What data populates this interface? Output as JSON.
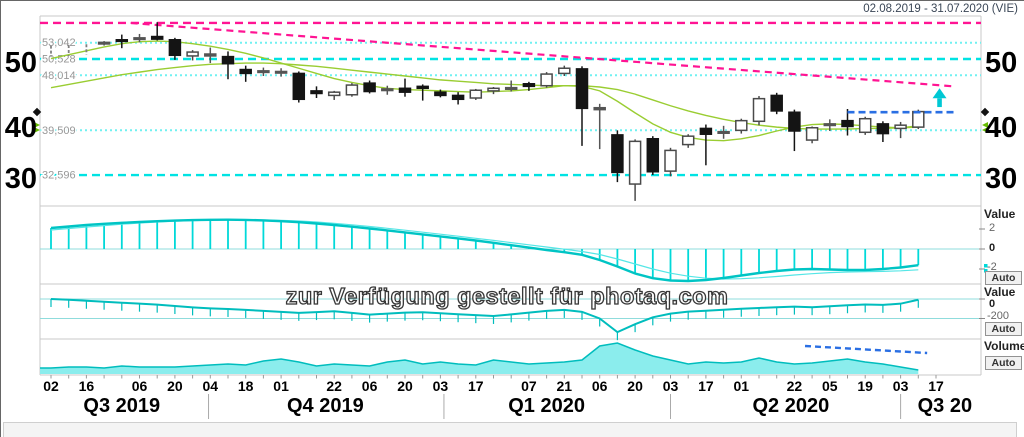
{
  "header": {
    "date_range": "02.08.2019 - 31.07.2020 (VIE)"
  },
  "watermark": {
    "text": "zur Verfügung gestellt für photaq.com"
  },
  "colors": {
    "cyan_line": "#00C4C4",
    "cyan_thin": "#55E6E6",
    "cyan_bar": "#00D9D9",
    "cyan_fill": "#8BEDED",
    "cyan_area_top": "#00BDBD",
    "level_dashed": "#00E3E3",
    "level_dotted": "#70F1F1",
    "zero_line": "#8FDCDC",
    "pink": "#FF1493",
    "green_ma": "#9ACD32",
    "blue": "#2A6FE3",
    "candle_black": "#141414",
    "candle_hollow": "#4a4a4a",
    "candle_gray": "#555555",
    "candle_dashed": "#808080",
    "arrow": "#00C8D4",
    "grid": "#c9c9c9",
    "marker_green": "#66BB00",
    "tick_gray": "#9a9a9a"
  },
  "price_axis": {
    "major_ticks": [
      "50",
      "40",
      "30"
    ],
    "level_lines": [
      {
        "label": "53,042",
        "value": 53.042,
        "style": "dotted"
      },
      {
        "label": "50,528",
        "value": 50.528,
        "style": "dashed"
      },
      {
        "label": "48,014",
        "value": 48.014,
        "style": "dotted"
      },
      {
        "label": "39,509",
        "value": 39.509,
        "style": "dotted"
      },
      {
        "label": "32,596",
        "value": 32.596,
        "style": "dashed"
      }
    ]
  },
  "x_axis": {
    "tick_labels": [
      {
        "label": "02",
        "week": 0
      },
      {
        "label": "16",
        "week": 2
      },
      {
        "label": "06",
        "week": 5
      },
      {
        "label": "20",
        "week": 7
      },
      {
        "label": "04",
        "week": 9
      },
      {
        "label": "18",
        "week": 11
      },
      {
        "label": "01",
        "week": 13
      },
      {
        "label": "22",
        "week": 16
      },
      {
        "label": "06",
        "week": 18
      },
      {
        "label": "20",
        "week": 20
      },
      {
        "label": "03",
        "week": 22
      },
      {
        "label": "17",
        "week": 24
      },
      {
        "label": "07",
        "week": 27
      },
      {
        "label": "21",
        "week": 29
      },
      {
        "label": "06",
        "week": 31
      },
      {
        "label": "20",
        "week": 33
      },
      {
        "label": "03",
        "week": 35
      },
      {
        "label": "17",
        "week": 37
      },
      {
        "label": "01",
        "week": 39
      },
      {
        "label": "22",
        "week": 42
      },
      {
        "label": "05",
        "week": 44
      },
      {
        "label": "19",
        "week": 46
      },
      {
        "label": "03",
        "week": 48
      },
      {
        "label": "17",
        "week": 50
      }
    ],
    "quarters": [
      {
        "label": "Q3 2019",
        "week": 4
      },
      {
        "label": "Q4 2019",
        "week": 15.5
      },
      {
        "label": "Q1 2020",
        "week": 28
      },
      {
        "label": "Q2 2020",
        "week": 41.8
      },
      {
        "label": "Q3 20",
        "week": 50.5
      }
    ],
    "quarter_separators_weeks": [
      8.9,
      22.2,
      35,
      48
    ]
  },
  "panels_right": {
    "macd": {
      "title": "Value",
      "ticks": [
        "2",
        "0",
        "-2"
      ],
      "button": "Auto"
    },
    "osc": {
      "title": "Value",
      "ticks": [
        "0",
        "-200"
      ],
      "button": "Auto"
    },
    "volume": {
      "title": "Volume",
      "button": "Auto"
    }
  },
  "chart_data": [
    {
      "type": "candlestick",
      "panel": "price",
      "x_unit": "weekly",
      "ylim": [
        27,
        57
      ],
      "candles": [
        [
          51.8,
          52.6,
          50.9,
          51.8,
          "dashed"
        ],
        [
          52.0,
          52.7,
          51.0,
          52.0,
          "dashed"
        ],
        [
          52.1,
          52.8,
          51.2,
          52.1,
          "dashed"
        ],
        [
          53.0,
          53.3,
          52.6,
          53.1,
          "gray"
        ],
        [
          53.3,
          54.3,
          52.2,
          53.5,
          "black"
        ],
        [
          53.7,
          54.4,
          53.1,
          53.8,
          "gray"
        ],
        [
          54.0,
          56.2,
          53.4,
          53.6,
          "black"
        ],
        [
          53.5,
          53.8,
          50.4,
          51.1,
          "black"
        ],
        [
          51.0,
          51.9,
          50.3,
          51.6,
          "hollow"
        ],
        [
          51.3,
          52.3,
          49.9,
          51.0,
          "gray"
        ],
        [
          50.9,
          51.7,
          47.4,
          49.8,
          "black"
        ],
        [
          48.9,
          49.5,
          47.0,
          48.3,
          "black"
        ],
        [
          48.5,
          49.2,
          47.9,
          48.7,
          "gray"
        ],
        [
          48.6,
          49.1,
          47.8,
          48.4,
          "gray"
        ],
        [
          48.3,
          48.6,
          43.8,
          44.3,
          "black"
        ],
        [
          45.6,
          46.3,
          44.5,
          45.2,
          "black"
        ],
        [
          44.9,
          45.6,
          44.2,
          45.4,
          "hollow"
        ],
        [
          45.0,
          46.8,
          44.7,
          46.5,
          "hollow"
        ],
        [
          46.8,
          47.2,
          45.2,
          45.5,
          "black"
        ],
        [
          45.7,
          46.4,
          45.0,
          45.9,
          "gray"
        ],
        [
          46.0,
          47.5,
          44.7,
          45.4,
          "black"
        ],
        [
          46.3,
          46.6,
          44.1,
          46.0,
          "black"
        ],
        [
          45.4,
          45.8,
          44.6,
          44.9,
          "black"
        ],
        [
          44.9,
          45.4,
          43.5,
          44.3,
          "black"
        ],
        [
          44.5,
          45.9,
          44.2,
          45.7,
          "hollow"
        ],
        [
          45.6,
          46.2,
          45.1,
          46.0,
          "hollow"
        ],
        [
          45.9,
          47.2,
          45.5,
          46.1,
          "gray"
        ],
        [
          46.3,
          47.0,
          45.6,
          46.7,
          "black"
        ],
        [
          46.4,
          48.5,
          46.1,
          48.2,
          "hollow"
        ],
        [
          48.3,
          49.5,
          47.9,
          49.1,
          "hollow"
        ],
        [
          49.0,
          49.4,
          37.1,
          42.9,
          "black"
        ],
        [
          43.0,
          43.6,
          36.6,
          42.7,
          "gray"
        ],
        [
          38.8,
          39.5,
          31.5,
          33.0,
          "black"
        ],
        [
          31.2,
          38.1,
          28.6,
          37.8,
          "hollow"
        ],
        [
          38.2,
          38.6,
          32.6,
          33.1,
          "black"
        ],
        [
          33.2,
          36.8,
          32.4,
          36.4,
          "hollow"
        ],
        [
          37.3,
          38.9,
          36.8,
          38.6,
          "hollow"
        ],
        [
          39.8,
          40.4,
          34.1,
          38.9,
          "black"
        ],
        [
          39.2,
          40.2,
          38.2,
          39.3,
          "gray"
        ],
        [
          39.5,
          41.3,
          39.0,
          41.0,
          "hollow"
        ],
        [
          40.9,
          44.8,
          40.3,
          44.4,
          "hollow"
        ],
        [
          44.9,
          45.3,
          42.0,
          42.5,
          "black"
        ],
        [
          42.3,
          42.7,
          36.3,
          39.4,
          "black"
        ],
        [
          38.0,
          40.1,
          37.5,
          39.9,
          "hollow"
        ],
        [
          40.3,
          41.2,
          39.4,
          40.5,
          "gray"
        ],
        [
          41.0,
          42.8,
          38.7,
          40.1,
          "black"
        ],
        [
          39.2,
          41.6,
          38.8,
          41.3,
          "hollow"
        ],
        [
          40.5,
          40.9,
          37.7,
          39.0,
          "black"
        ],
        [
          39.8,
          40.8,
          38.3,
          40.3,
          "hollow"
        ],
        [
          40.0,
          42.7,
          39.7,
          42.4,
          "hollow"
        ]
      ],
      "overlays": {
        "ma_fast": [
          50.6,
          51.2,
          51.8,
          52.4,
          52.9,
          53.2,
          53.3,
          53.2,
          52.9,
          52.5,
          52.0,
          51.4,
          50.7,
          49.9,
          49.1,
          48.3,
          47.5,
          46.9,
          46.4,
          46.0,
          45.8,
          45.7,
          45.6,
          45.5,
          45.4,
          45.5,
          45.6,
          45.8,
          46.1,
          46.4,
          46.3,
          45.6,
          44.0,
          42.2,
          40.5,
          39.2,
          38.4,
          38.0,
          37.9,
          38.2,
          38.7,
          39.4,
          40.0,
          40.4,
          40.5,
          40.4,
          40.2,
          40.0,
          39.9,
          40.2
        ],
        "ma_slow": [
          46.1,
          46.6,
          47.1,
          47.6,
          48.1,
          48.5,
          48.9,
          49.2,
          49.5,
          49.7,
          49.8,
          49.9,
          49.9,
          49.8,
          49.6,
          49.4,
          49.1,
          48.8,
          48.5,
          48.2,
          47.9,
          47.6,
          47.3,
          47.1,
          46.9,
          46.7,
          46.6,
          46.5,
          46.4,
          46.4,
          46.4,
          46.2,
          45.8,
          45.1,
          44.2,
          43.3,
          42.5,
          41.8,
          41.2,
          40.7,
          40.3,
          40.0,
          39.8,
          39.7,
          39.7,
          39.7,
          39.8,
          39.8,
          39.9,
          40.0
        ]
      },
      "annotations": {
        "resistance_price": 56.1,
        "trendline": {
          "from": {
            "week": 4.5,
            "price": 56.1
          },
          "to": {
            "week": 51,
            "price": 46.3
          }
        },
        "breakout_line": {
          "price": 42.3,
          "from_week": 45,
          "to_week": 51.2
        },
        "up_arrow": {
          "week": 50.2,
          "tip_price": 46.0,
          "tail_price": 43.1
        }
      }
    },
    {
      "type": "bar",
      "panel": "macd",
      "title": "Value",
      "yticks": [
        2,
        0,
        -2
      ],
      "histogram": [
        2.1,
        2.25,
        2.4,
        2.52,
        2.62,
        2.7,
        2.78,
        2.84,
        2.89,
        2.92,
        2.93,
        2.91,
        2.86,
        2.78,
        2.68,
        2.55,
        2.4,
        2.23,
        2.05,
        1.86,
        1.66,
        1.46,
        1.26,
        1.06,
        0.85,
        0.62,
        0.38,
        0.14,
        -0.1,
        -0.32,
        -0.58,
        -1.1,
        -1.75,
        -2.45,
        -2.92,
        -3.15,
        -3.2,
        -3.1,
        -2.9,
        -2.65,
        -2.4,
        -2.2,
        -2.05,
        -2.0,
        -2.05,
        -2.1,
        -2.1,
        -2.0,
        -1.85,
        -1.62
      ],
      "macd_line": [
        2.1,
        2.25,
        2.4,
        2.52,
        2.62,
        2.7,
        2.78,
        2.84,
        2.89,
        2.92,
        2.93,
        2.91,
        2.86,
        2.78,
        2.68,
        2.55,
        2.4,
        2.23,
        2.05,
        1.86,
        1.66,
        1.46,
        1.26,
        1.06,
        0.85,
        0.62,
        0.38,
        0.14,
        -0.1,
        -0.32,
        -0.58,
        -1.1,
        -1.75,
        -2.45,
        -2.92,
        -3.15,
        -3.2,
        -3.1,
        -2.9,
        -2.65,
        -2.4,
        -2.2,
        -2.05,
        -2.0,
        -2.05,
        -2.1,
        -2.1,
        -2.0,
        -1.85,
        -1.62
      ],
      "signal_line": [
        1.9,
        2.05,
        2.2,
        2.34,
        2.48,
        2.6,
        2.7,
        2.78,
        2.84,
        2.89,
        2.92,
        2.93,
        2.91,
        2.87,
        2.8,
        2.7,
        2.57,
        2.42,
        2.25,
        2.07,
        1.88,
        1.68,
        1.48,
        1.28,
        1.07,
        0.86,
        0.64,
        0.42,
        0.2,
        -0.02,
        -0.25,
        -0.55,
        -1.0,
        -1.5,
        -2.0,
        -2.42,
        -2.72,
        -2.92,
        -3.0,
        -2.97,
        -2.88,
        -2.75,
        -2.6,
        -2.47,
        -2.36,
        -2.3,
        -2.27,
        -2.24,
        -2.18,
        -2.08
      ]
    },
    {
      "type": "line",
      "panel": "oscillator",
      "title": "Value",
      "yticks": [
        0,
        -200
      ],
      "values": [
        0,
        -8,
        -18,
        -28,
        -38,
        -48,
        -58,
        -72,
        -86,
        -96,
        -102,
        -112,
        -122,
        -132,
        -142,
        -134,
        -126,
        -142,
        -160,
        -150,
        -140,
        -136,
        -146,
        -156,
        -166,
        -174,
        -158,
        -140,
        -122,
        -112,
        -132,
        -200,
        -340,
        -258,
        -188,
        -150,
        -130,
        -120,
        -110,
        -100,
        -92,
        -84,
        -78,
        -84,
        -74,
        -64,
        -56,
        -60,
        -48,
        -8
      ]
    },
    {
      "type": "area",
      "panel": "volume",
      "title": "Volume",
      "values": [
        6,
        7,
        7,
        6,
        8,
        7,
        7,
        7,
        8,
        9,
        10,
        9,
        13,
        15,
        12,
        8,
        10,
        9,
        8,
        12,
        14,
        10,
        12,
        10,
        9,
        14,
        12,
        10,
        11,
        12,
        14,
        28,
        31,
        24,
        18,
        14,
        10,
        12,
        11,
        12,
        16,
        12,
        10,
        11,
        13,
        15,
        12,
        10,
        7,
        4
      ],
      "trend_line": {
        "from_week": 42.6,
        "from_value": 28,
        "to_week": 49.5,
        "to_value": 21
      }
    }
  ]
}
